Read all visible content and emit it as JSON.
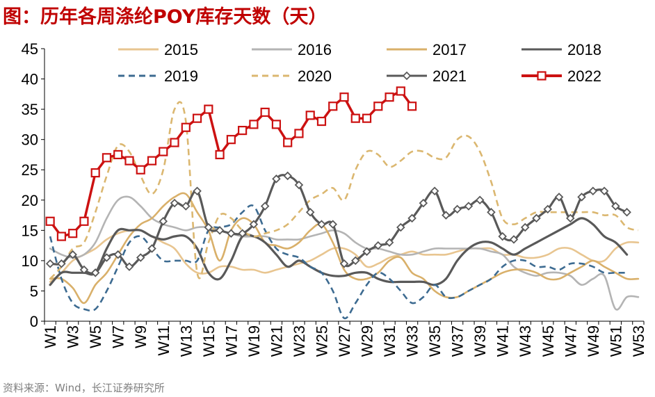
{
  "page": {
    "title": "图：历年各周涤纶POY库存天数（天）",
    "source": "资料来源：Wind，长江证券研究所"
  },
  "chart_data": {
    "type": "line",
    "title": "历年各周涤纶POY库存天数（天）",
    "xlabel": "",
    "ylabel": "",
    "ylim": [
      0,
      45
    ],
    "yticks": [
      0,
      5,
      10,
      15,
      20,
      25,
      30,
      35,
      40,
      45
    ],
    "week_count": 53,
    "xtick_labels": [
      "W1",
      "W3",
      "W5",
      "W7",
      "W9",
      "W11",
      "W13",
      "W15",
      "W17",
      "W19",
      "W21",
      "W23",
      "W25",
      "W27",
      "W29",
      "W31",
      "W33",
      "W35",
      "W37",
      "W39",
      "W41",
      "W43",
      "W45",
      "W47",
      "W49",
      "W51",
      "W53"
    ],
    "legend": {
      "placement": "top",
      "columns": 4
    },
    "series": [
      {
        "name": "2015",
        "color": "#e8c590",
        "dash": "solid",
        "marker": "none",
        "values": [
          6.5,
          8,
          10,
          11,
          12,
          13.5,
          14.5,
          15,
          15,
          14,
          13,
          12,
          9.5,
          8,
          8,
          9,
          9,
          8.5,
          8.5,
          8,
          8.5,
          9,
          9.5,
          10,
          11,
          12,
          12,
          11,
          9,
          9.5,
          10.5,
          11,
          11.5,
          11,
          11,
          11,
          11.5,
          12,
          12,
          12,
          11,
          11,
          10.5,
          10.5,
          11,
          12,
          12,
          11,
          10,
          10,
          12,
          13,
          13
        ]
      },
      {
        "name": "2016",
        "color": "#b4b4b4",
        "dash": "solid",
        "marker": "none",
        "values": [
          12,
          11,
          10.5,
          11,
          13,
          17,
          20,
          20.5,
          19,
          17,
          16,
          15.5,
          15,
          15.5,
          15.5,
          15,
          14.5,
          14,
          14,
          14,
          13.5,
          13.5,
          13.5,
          14,
          14.5,
          15,
          14.5,
          13,
          12,
          12,
          11.5,
          11,
          11,
          11.5,
          12,
          12,
          12,
          12,
          12,
          11.5,
          11,
          9,
          8,
          7.5,
          8,
          8,
          7.5,
          6,
          7,
          7.5,
          2,
          4,
          4
        ]
      },
      {
        "name": "2017",
        "color": "#d9b06a",
        "dash": "solid",
        "marker": "none",
        "values": [
          7,
          7,
          5.5,
          3,
          6,
          8,
          11,
          14,
          16,
          17,
          19,
          20.5,
          21,
          18,
          15,
          10,
          15,
          17,
          16,
          13,
          12.5,
          12,
          13,
          15,
          16,
          13,
          8.5,
          7,
          7,
          8,
          10,
          10.5,
          8,
          7,
          5,
          4,
          4,
          5,
          6,
          7,
          8,
          8.5,
          8.5,
          8,
          7,
          7,
          8,
          9,
          10,
          9,
          8,
          7,
          7
        ]
      },
      {
        "name": "2018",
        "color": "#595959",
        "dash": "solid",
        "marker": "none",
        "values": [
          6,
          8,
          8,
          8,
          8,
          12,
          15,
          15,
          15,
          14,
          13.5,
          14,
          14,
          12,
          8,
          7,
          10,
          14,
          14,
          13,
          11,
          9,
          10,
          9,
          8,
          7.5,
          7.5,
          8,
          8,
          7,
          6.5,
          6.5,
          6.5,
          6.5,
          6,
          7,
          10,
          12,
          13,
          13,
          12,
          11,
          12,
          13,
          14,
          15,
          16,
          17,
          16,
          14,
          13,
          11
        ]
      },
      {
        "name": "2019",
        "color": "#3d6b91",
        "dash": "dash",
        "marker": "none",
        "values": [
          14,
          7,
          3,
          2,
          2,
          5,
          9,
          13,
          14,
          12,
          10,
          10,
          10,
          10,
          15,
          15.5,
          16,
          18,
          19,
          15,
          12,
          11,
          10.5,
          9,
          8,
          5,
          0.5,
          3,
          6,
          8,
          7,
          5,
          3,
          4,
          6,
          4,
          4,
          5,
          6,
          7,
          9,
          10,
          10,
          9,
          9,
          8.5,
          9.5,
          9.5,
          9,
          8,
          8,
          8
        ]
      },
      {
        "name": "2020",
        "color": "#dbb770",
        "dash": "dash",
        "marker": "none",
        "values": [
          7,
          9,
          12,
          13,
          18,
          24,
          29,
          28,
          24,
          21,
          25,
          35,
          33,
          8,
          13,
          17.5,
          17,
          15,
          14,
          14.5,
          15,
          16,
          18,
          20,
          21,
          22,
          20,
          25,
          28,
          27.5,
          25.5,
          26.5,
          28,
          28,
          27,
          27,
          30,
          30.5,
          28,
          23,
          17,
          16,
          17,
          18,
          18,
          18,
          18,
          18,
          18,
          17.5,
          17.5,
          15.5,
          15
        ]
      },
      {
        "name": "2021",
        "color": "#595959",
        "dash": "solid",
        "marker": "diamond",
        "values": [
          9.5,
          9.5,
          11,
          8.5,
          8,
          10.5,
          11,
          9,
          10.5,
          12,
          16.5,
          19.5,
          19,
          21.5,
          15.5,
          15,
          14.5,
          14.5,
          16,
          19,
          23.5,
          24,
          22.5,
          18,
          16,
          16,
          9.5,
          10,
          11.5,
          12.5,
          13,
          15.5,
          17,
          19.5,
          21.5,
          17.5,
          18.5,
          19,
          20,
          18,
          14,
          13.5,
          15.5,
          17,
          18.5,
          20.5,
          17,
          20.5,
          21.5,
          21.5,
          19,
          18
        ]
      },
      {
        "name": "2022",
        "color": "#cc1111",
        "dash": "solid",
        "marker": "square",
        "values": [
          16.5,
          14,
          14.5,
          16.5,
          24.5,
          27,
          27.5,
          26.5,
          25,
          26.5,
          28,
          29.5,
          32,
          33.5,
          35,
          27.5,
          30,
          31.5,
          32.5,
          34.5,
          32.5,
          29.5,
          31,
          34,
          33,
          35.5,
          37,
          33.5,
          33.5,
          35.5,
          37,
          38,
          35.5
        ]
      }
    ]
  }
}
